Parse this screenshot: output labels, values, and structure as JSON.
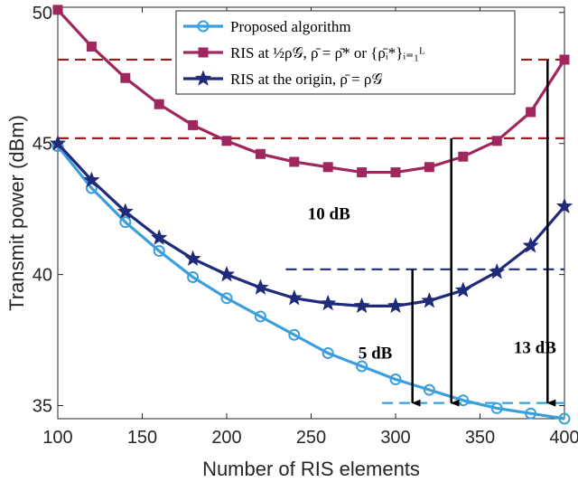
{
  "chart_data": {
    "type": "line",
    "title": "",
    "xlabel": "Number of RIS elements",
    "ylabel": "Transmit power (dBm)",
    "xlim": [
      100,
      400
    ],
    "ylim": [
      34.5,
      50.2
    ],
    "xticks": [
      100,
      150,
      200,
      250,
      300,
      350,
      400
    ],
    "yticks": [
      35,
      40,
      45,
      50
    ],
    "x": [
      100,
      120,
      140,
      160,
      180,
      200,
      220,
      240,
      260,
      280,
      300,
      320,
      340,
      360,
      380,
      400
    ],
    "series": [
      {
        "name": "Proposed algorithm",
        "legend_text": "Proposed algorithm",
        "color": "#3b9fdc",
        "marker": "circle",
        "values": [
          44.9,
          43.3,
          42.0,
          40.9,
          39.9,
          39.1,
          38.4,
          37.7,
          37.0,
          36.5,
          36.0,
          35.6,
          35.2,
          34.9,
          34.7,
          34.5
        ]
      },
      {
        "name": "RIS at half rho_G",
        "legend_text": "RIS at ½ρ𝒢, ρ̄ = ρ̄* or {ρ̄ᵢ*}ᵢ₌₁ᴸ",
        "color": "#a0275e",
        "marker": "square",
        "values": [
          50.1,
          48.7,
          47.5,
          46.5,
          45.7,
          45.1,
          44.6,
          44.3,
          44.1,
          43.9,
          43.9,
          44.1,
          44.5,
          45.1,
          46.2,
          48.2
        ]
      },
      {
        "name": "RIS at the origin",
        "legend_text": "RIS at the origin, ρ̄ = ρ𝒢",
        "color": "#1f2a7a",
        "marker": "star",
        "values": [
          45.0,
          43.6,
          42.4,
          41.4,
          40.6,
          40.0,
          39.5,
          39.1,
          38.9,
          38.8,
          38.8,
          39.0,
          39.4,
          40.1,
          41.1,
          42.6
        ]
      }
    ],
    "reference_lines": [
      {
        "y": 48.2,
        "x_start": 100,
        "x_end": 400,
        "color": "#9b1c1c"
      },
      {
        "y": 45.2,
        "x_start": 100,
        "x_end": 400,
        "color": "#9b1c1c"
      },
      {
        "y": 40.2,
        "x_start": 235,
        "x_end": 400,
        "color": "#1f2a7a"
      },
      {
        "y": 35.1,
        "x_start": 292,
        "x_end": 400,
        "color": "#3b9fdc"
      }
    ],
    "annotations": [
      {
        "text": "10 dB",
        "x_text": 248,
        "y_text": 42.1,
        "arrow_x": 333,
        "arrow_from": 45.2,
        "arrow_to": 35.1
      },
      {
        "text": "5 dB",
        "x_text": 278,
        "y_text": 36.8,
        "arrow_x": 310,
        "arrow_from": 40.2,
        "arrow_to": 35.1
      },
      {
        "text": "13 dB",
        "x_text": 370,
        "y_text": 37.0,
        "arrow_x": 390,
        "arrow_from": 48.2,
        "arrow_to": 35.1
      }
    ],
    "legend_position": "top-right",
    "grid": false
  }
}
